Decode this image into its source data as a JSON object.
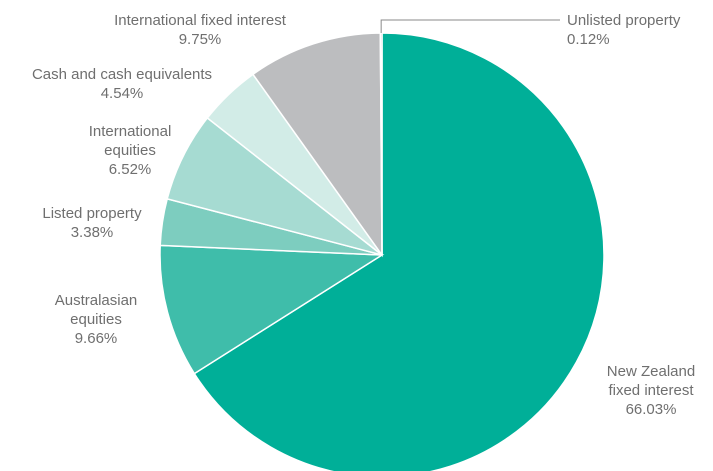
{
  "chart_data": {
    "type": "pie",
    "title": "",
    "slices": [
      {
        "name": "New Zealand fixed interest",
        "label_lines": [
          "New Zealand",
          "fixed interest"
        ],
        "value": 66.03,
        "value_label": "66.03%",
        "color": "#00af98"
      },
      {
        "name": "Australasian equities",
        "label_lines": [
          "Australasian",
          "equities"
        ],
        "value": 9.66,
        "value_label": "9.66%",
        "color": "#3fbdaa"
      },
      {
        "name": "Listed property",
        "label_lines": [
          "Listed property"
        ],
        "value": 3.38,
        "value_label": "3.38%",
        "color": "#7dcdbf"
      },
      {
        "name": "International equities",
        "label_lines": [
          "International",
          "equities"
        ],
        "value": 6.52,
        "value_label": "6.52%",
        "color": "#a6dbd2"
      },
      {
        "name": "Cash and cash equivalents",
        "label_lines": [
          "Cash and cash equivalents"
        ],
        "value": 4.54,
        "value_label": "4.54%",
        "color": "#d2ece7"
      },
      {
        "name": "International fixed interest",
        "label_lines": [
          "International fixed interest"
        ],
        "value": 9.75,
        "value_label": "9.75%",
        "color": "#bcbdbf"
      },
      {
        "name": "Unlisted property",
        "label_lines": [
          "Unlisted property"
        ],
        "value": 0.12,
        "value_label": "0.12%",
        "color": "#9d9fa2"
      }
    ],
    "start_angle": "12 o'clock",
    "direction": "clockwise",
    "legend": "none",
    "labels": "outside slices"
  }
}
